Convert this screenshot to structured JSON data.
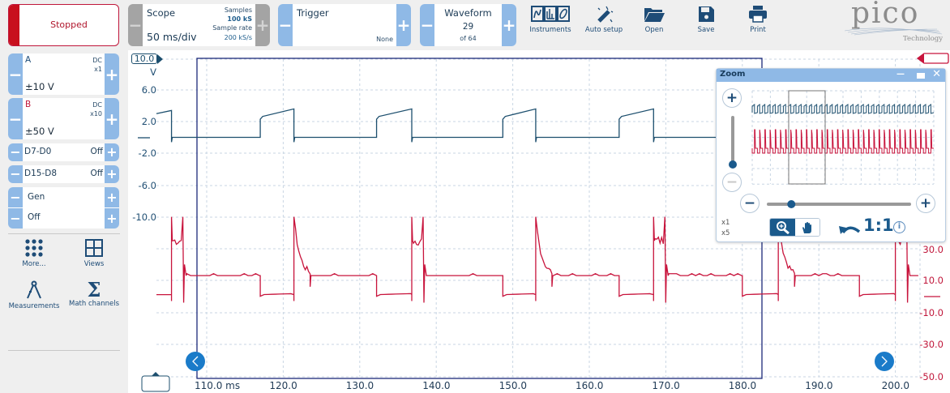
{
  "toolbar": {
    "run_status": "Stopped",
    "scope": {
      "label": "Scope",
      "timebase": "50 ms/div",
      "samples_label": "Samples",
      "samples": "100 kS",
      "rate_label": "Sample rate",
      "rate": "200 kS/s"
    },
    "trigger": {
      "label": "Trigger",
      "mode": "None"
    },
    "waveform": {
      "label": "Waveform",
      "current": "29",
      "total": "of 64"
    },
    "buttons": [
      {
        "label": "Instruments",
        "icon": "instruments-icon"
      },
      {
        "label": "Auto setup",
        "icon": "magic-wand-icon"
      },
      {
        "label": "Open",
        "icon": "folder-icon"
      },
      {
        "label": "Save",
        "icon": "floppy-disk-icon"
      },
      {
        "label": "Print",
        "icon": "printer-icon"
      }
    ],
    "logo": {
      "name": "pico",
      "tagline": "Technology"
    }
  },
  "channels": {
    "a": {
      "name": "A",
      "coupling": "DC",
      "probe": "x1",
      "range": "±10 V"
    },
    "b": {
      "name": "B",
      "coupling": "DC",
      "probe": "x10",
      "range": "±50 V"
    },
    "d7d0": {
      "name": "D7-D0",
      "state": "Off"
    },
    "d15d8": {
      "name": "D15-D8",
      "state": "Off"
    },
    "gen": {
      "name": "Gen",
      "state": "Off"
    }
  },
  "tools": [
    {
      "label": "More...",
      "icon": "grid-dots-icon"
    },
    {
      "label": "Views",
      "icon": "views-icon"
    },
    {
      "label": "Measurements",
      "icon": "compass-icon"
    },
    {
      "label": "Math channels",
      "icon": "sigma-icon"
    }
  ],
  "plot": {
    "y_axis_a": {
      "top_value": "10.0",
      "unit": "V",
      "ticks": [
        "6.0",
        "2.0",
        "-2.0",
        "-6.0",
        "-10.0"
      ]
    },
    "y_axis_b": {
      "ticks": [
        "30.0",
        "10.0",
        "-10.0",
        "-30.0",
        "-50.0"
      ]
    },
    "x_axis": {
      "ticks": [
        "110.0 ms",
        "120.0",
        "130.0",
        "140.0",
        "150.0",
        "160.0",
        "170.0",
        "180.0",
        "190.0",
        "200.0"
      ]
    },
    "colors": {
      "a": "#1d4f6e",
      "b": "#c8143c",
      "grid": "#c9d6e3",
      "frame": "#1c2a7a"
    },
    "waveforms": {
      "a": {
        "rising_ms": [
          117.0,
          132.2,
          148.7,
          163.9,
          180.0,
          195.3
        ],
        "falling_ms": [
          105.4,
          121.4,
          136.8,
          153.0,
          168.4,
          184.7,
          200.0
        ],
        "low_v": 0,
        "high_start_v": 2.3,
        "high_end_v": 3.6
      },
      "b": {
        "base_v": 13,
        "low_v": 1,
        "clip_v": 50,
        "plateau_v": 35
      }
    }
  },
  "zoom_window": {
    "title": "Zoom",
    "zoom_levels": [
      "x1",
      "x5"
    ],
    "ratio_label": "1:1",
    "vertical_zoom_level": 0,
    "horizontal_zoom_level": 0.17
  }
}
